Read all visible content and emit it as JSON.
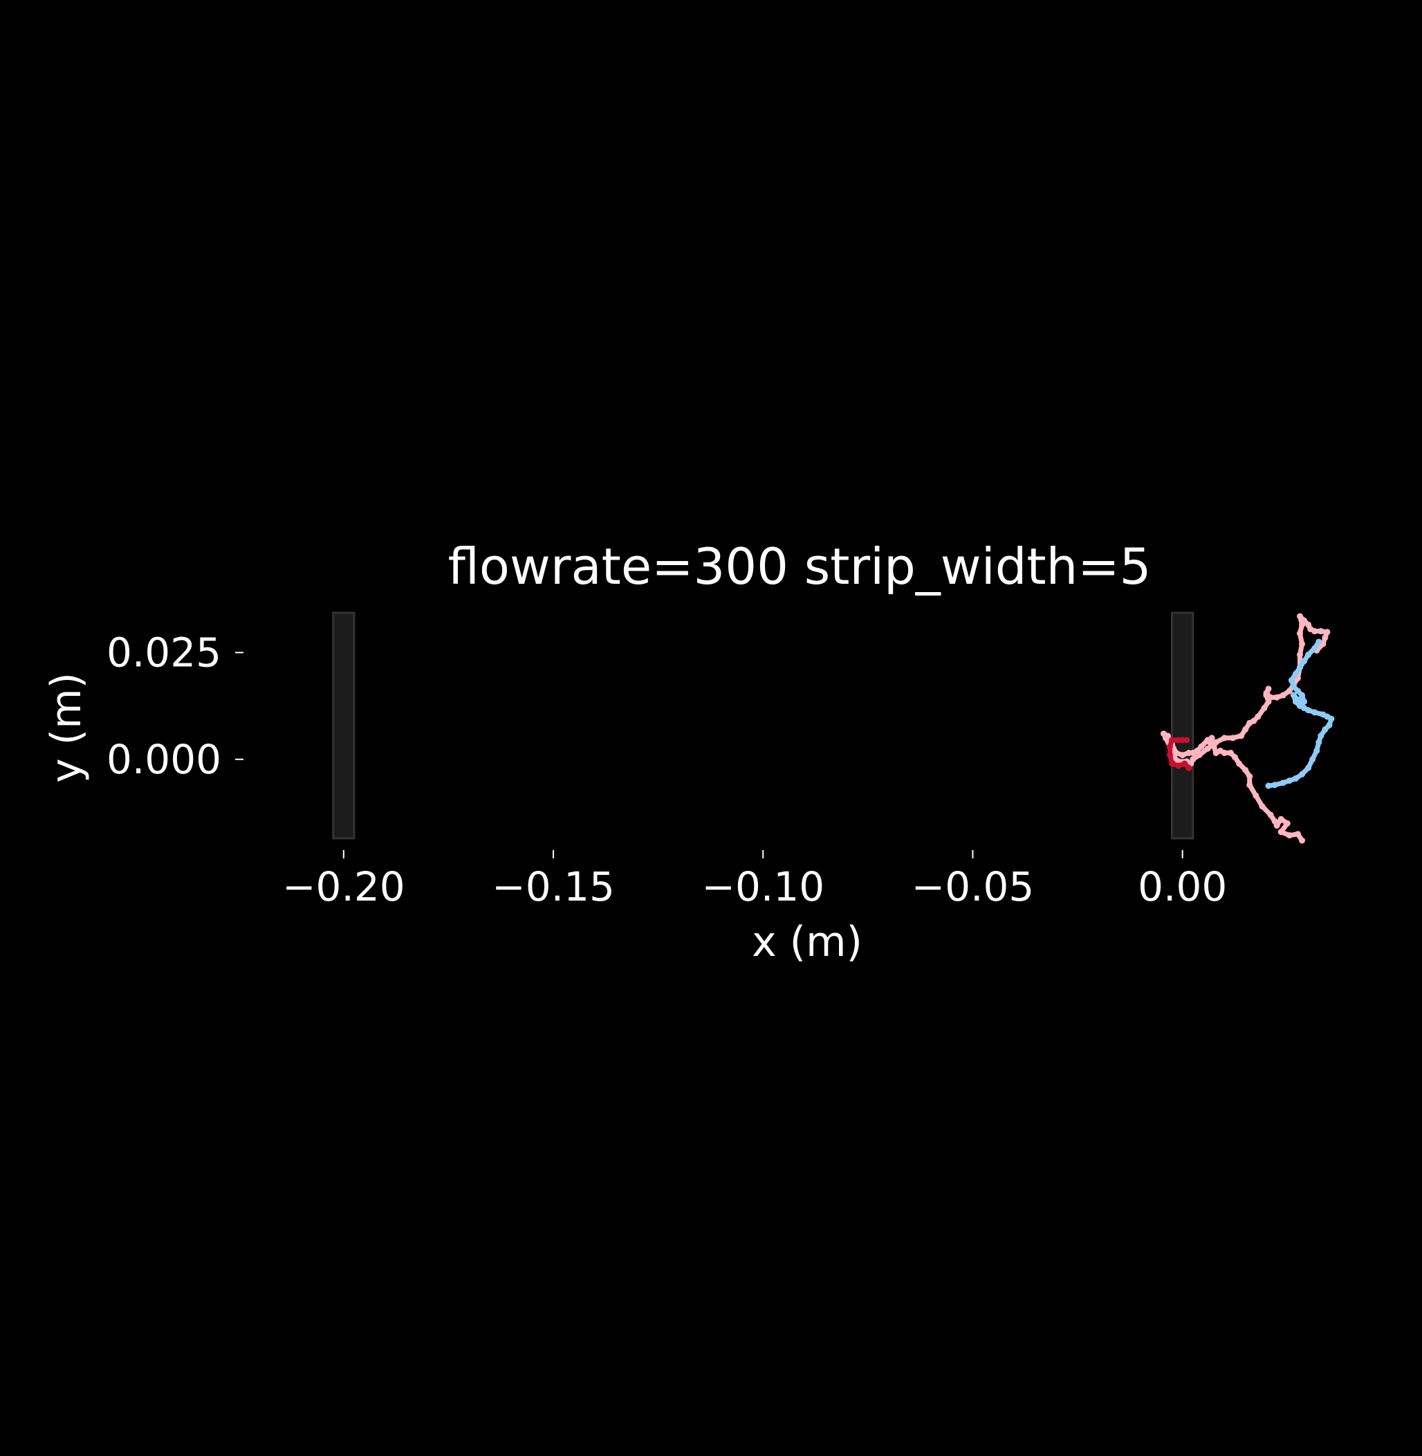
{
  "chart_data": {
    "type": "scatter",
    "title": "flowrate=300 strip_width=5",
    "xlabel": "x (m)",
    "ylabel": "y (m)",
    "xlim": [
      -0.213,
      0.036
    ],
    "ylim": [
      -0.0185,
      0.0343
    ],
    "x_ticks": [
      -0.2,
      -0.15,
      -0.1,
      -0.05,
      0.0
    ],
    "x_tick_labels": [
      "−0.20",
      "−0.15",
      "−0.10",
      "−0.05",
      "0.00"
    ],
    "y_ticks": [
      0.0,
      0.025
    ],
    "y_tick_labels": [
      "0.000",
      "0.025"
    ],
    "grid": false,
    "background": "#000000",
    "text_color": "#ffffff",
    "strips": [
      {
        "x_range": [
          -0.2025,
          -0.1975
        ],
        "y_range": [
          -0.0185,
          0.0343
        ],
        "color": "#1c1c1c",
        "edge": "#333333"
      },
      {
        "x_range": [
          -0.0025,
          0.0025
        ],
        "y_range": [
          -0.0185,
          0.0343
        ],
        "color": "#1c1c1c",
        "edge": "#333333"
      }
    ],
    "series": [
      {
        "color": "#ffb6c1",
        "points": [
          [
            0.0285,
            -0.019
          ],
          [
            0.0275,
            -0.0175
          ],
          [
            0.0255,
            -0.0178
          ],
          [
            0.0235,
            -0.017
          ],
          [
            0.025,
            -0.015
          ],
          [
            0.0235,
            -0.014
          ],
          [
            0.0225,
            -0.0155
          ],
          [
            0.022,
            -0.0145
          ],
          [
            0.021,
            -0.013
          ],
          [
            0.019,
            -0.011
          ],
          [
            0.0175,
            -0.0085
          ],
          [
            0.016,
            -0.006
          ],
          [
            0.016,
            -0.004
          ],
          [
            0.015,
            -0.0025
          ],
          [
            0.0135,
            -0.001
          ],
          [
            0.0125,
            0.0005
          ],
          [
            0.0115,
            0.0015
          ],
          [
            0.01,
            0.0015
          ],
          [
            0.009,
            0.002
          ],
          [
            0.008,
            0.0015
          ],
          [
            0.0075,
            0.003
          ],
          [
            0.0065,
            0.004
          ],
          [
            0.007,
            0.005
          ],
          [
            0.006,
            0.0045
          ],
          [
            0.0045,
            0.003
          ],
          [
            0.0035,
            0.002
          ],
          [
            0.0025,
            0.0015
          ],
          [
            0.0015,
            0.0015
          ],
          [
            0.0,
            0.001
          ],
          [
            -0.0015,
            0.0015
          ],
          [
            -0.0025,
            0.0035
          ],
          [
            -0.0035,
            0.0055
          ],
          [
            -0.0045,
            0.006
          ],
          [
            -0.004,
            0.005
          ],
          [
            -0.003,
            0.003
          ],
          [
            -0.002,
            0.002
          ],
          [
            -0.002,
            0.0005
          ],
          [
            -0.001,
            -0.0005
          ],
          [
            0.001,
            -0.0005
          ],
          [
            0.002,
            -0.001
          ],
          [
            0.0025,
            0.0
          ],
          [
            0.004,
            0.001
          ],
          [
            0.006,
            0.0025
          ],
          [
            0.008,
            0.004
          ],
          [
            0.01,
            0.005
          ],
          [
            0.012,
            0.005
          ],
          [
            0.014,
            0.0055
          ],
          [
            0.015,
            0.007
          ],
          [
            0.016,
            0.0085
          ],
          [
            0.017,
            0.009
          ],
          [
            0.018,
            0.01
          ],
          [
            0.0195,
            0.012
          ],
          [
            0.0205,
            0.0135
          ],
          [
            0.02,
            0.015
          ],
          [
            0.0205,
            0.0165
          ],
          [
            0.02,
            0.0155
          ],
          [
            0.021,
            0.0145
          ],
          [
            0.0225,
            0.0145
          ],
          [
            0.024,
            0.015
          ],
          [
            0.0255,
            0.016
          ],
          [
            0.0265,
            0.0175
          ],
          [
            0.0275,
            0.019
          ],
          [
            0.028,
            0.0215
          ],
          [
            0.028,
            0.0245
          ],
          [
            0.0285,
            0.027
          ],
          [
            0.028,
            0.0295
          ],
          [
            0.0285,
            0.0315
          ],
          [
            0.028,
            0.0335
          ],
          [
            0.029,
            0.0325
          ],
          [
            0.03,
            0.0315
          ],
          [
            0.0305,
            0.0305
          ],
          [
            0.0315,
            0.03
          ],
          [
            0.033,
            0.03
          ],
          [
            0.0345,
            0.0298
          ],
          [
            0.034,
            0.0285
          ],
          [
            0.0335,
            0.027
          ],
          [
            0.032,
            0.0255
          ]
        ]
      },
      {
        "color": "#8ecbf5",
        "points": [
          [
            0.0325,
            0.0275
          ],
          [
            0.0315,
            0.026
          ],
          [
            0.03,
            0.0245
          ],
          [
            0.029,
            0.023
          ],
          [
            0.028,
            0.0215
          ],
          [
            0.027,
            0.02
          ],
          [
            0.026,
            0.0185
          ],
          [
            0.0265,
            0.017
          ],
          [
            0.0275,
            0.016
          ],
          [
            0.0285,
            0.015
          ],
          [
            0.029,
            0.0135
          ],
          [
            0.028,
            0.0125
          ],
          [
            0.027,
            0.0135
          ],
          [
            0.0265,
            0.015
          ],
          [
            0.0275,
            0.014
          ],
          [
            0.029,
            0.012
          ],
          [
            0.03,
            0.0115
          ],
          [
            0.0315,
            0.011
          ],
          [
            0.0335,
            0.0105
          ],
          [
            0.0345,
            0.01
          ],
          [
            0.0355,
            0.0095
          ],
          [
            0.035,
            0.008
          ],
          [
            0.034,
            0.007
          ],
          [
            0.033,
            0.0055
          ],
          [
            0.0325,
            0.004
          ],
          [
            0.032,
            0.002
          ],
          [
            0.031,
            0.0
          ],
          [
            0.03,
            -0.002
          ],
          [
            0.0285,
            -0.0035
          ],
          [
            0.027,
            -0.0045
          ],
          [
            0.0255,
            -0.005
          ],
          [
            0.024,
            -0.0055
          ],
          [
            0.022,
            -0.006
          ],
          [
            0.0205,
            -0.0062
          ]
        ]
      },
      {
        "color": "#c8102e",
        "points": [
          [
            0.001,
            0.0045
          ],
          [
            0.0,
            0.0045
          ],
          [
            -0.001,
            0.0045
          ],
          [
            -0.0025,
            0.0045
          ],
          [
            -0.003,
            0.003
          ],
          [
            -0.003,
            0.001
          ],
          [
            -0.0025,
            -0.001
          ],
          [
            -0.001,
            -0.0015
          ],
          [
            0.0005,
            -0.001
          ],
          [
            0.0015,
            -0.002
          ]
        ]
      }
    ]
  }
}
